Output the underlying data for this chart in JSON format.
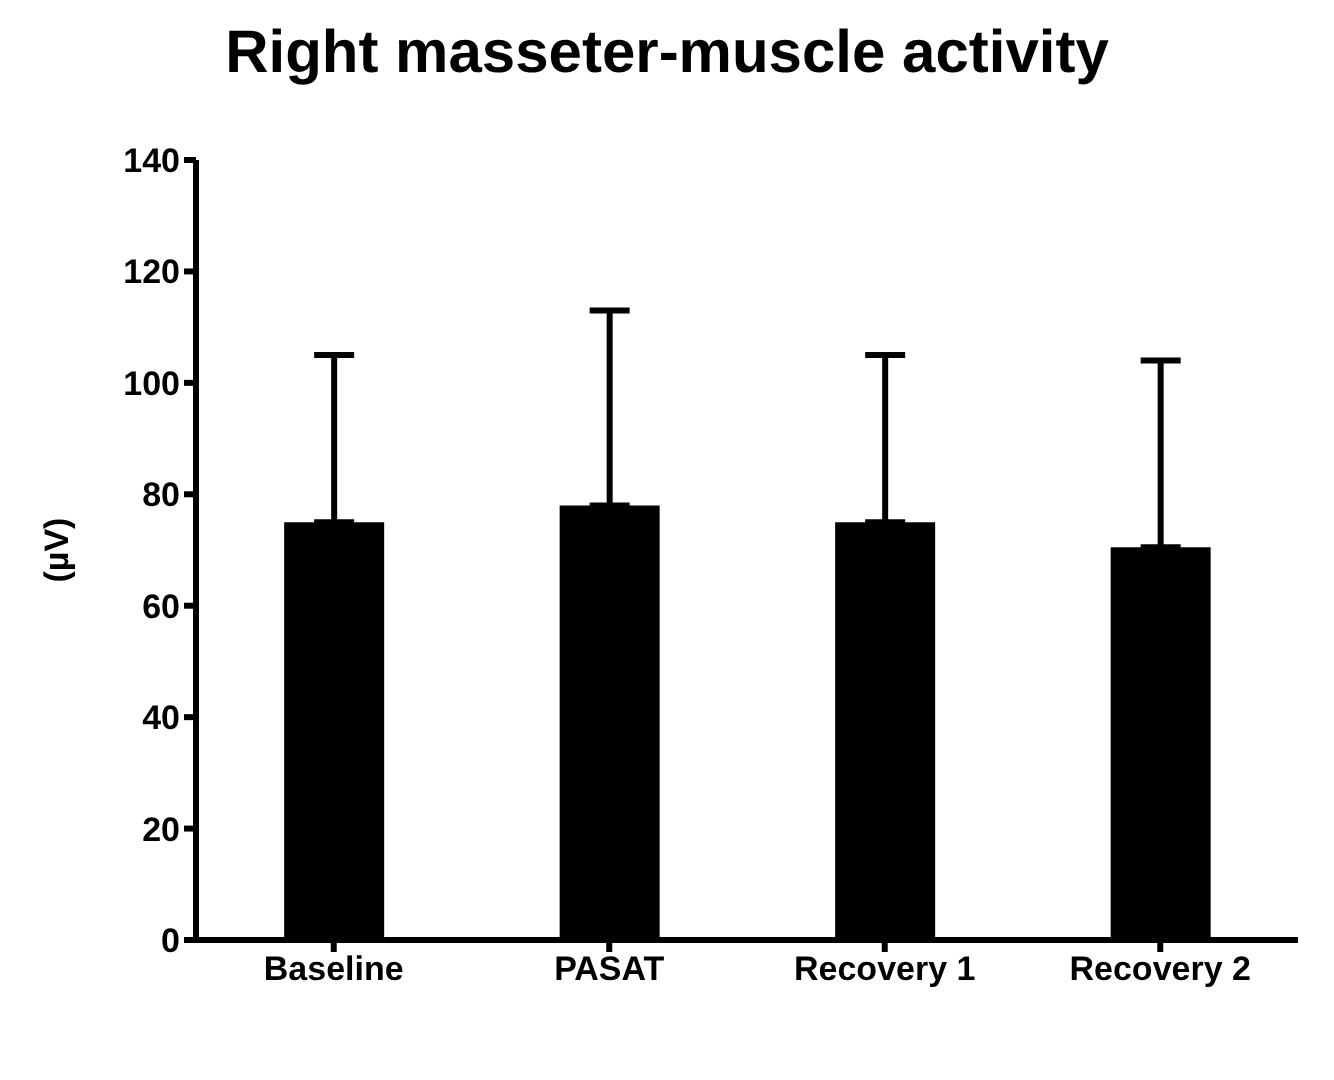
{
  "chart_data": {
    "type": "bar",
    "title": "Right masseter-muscle activity",
    "ylabel": "(µV)",
    "categories": [
      "Baseline",
      "PASAT",
      "Recovery 1",
      "Recovery 2"
    ],
    "values": [
      75,
      78,
      75,
      70.5
    ],
    "errors": [
      [
        75,
        105
      ],
      [
        78,
        113
      ],
      [
        75,
        105
      ],
      [
        70.5,
        104
      ]
    ],
    "color": "#000000",
    "ylim": [
      0,
      140
    ],
    "yticks": [
      0,
      20,
      40,
      60,
      80,
      100,
      120,
      140
    ],
    "grid": false,
    "legend": false
  }
}
